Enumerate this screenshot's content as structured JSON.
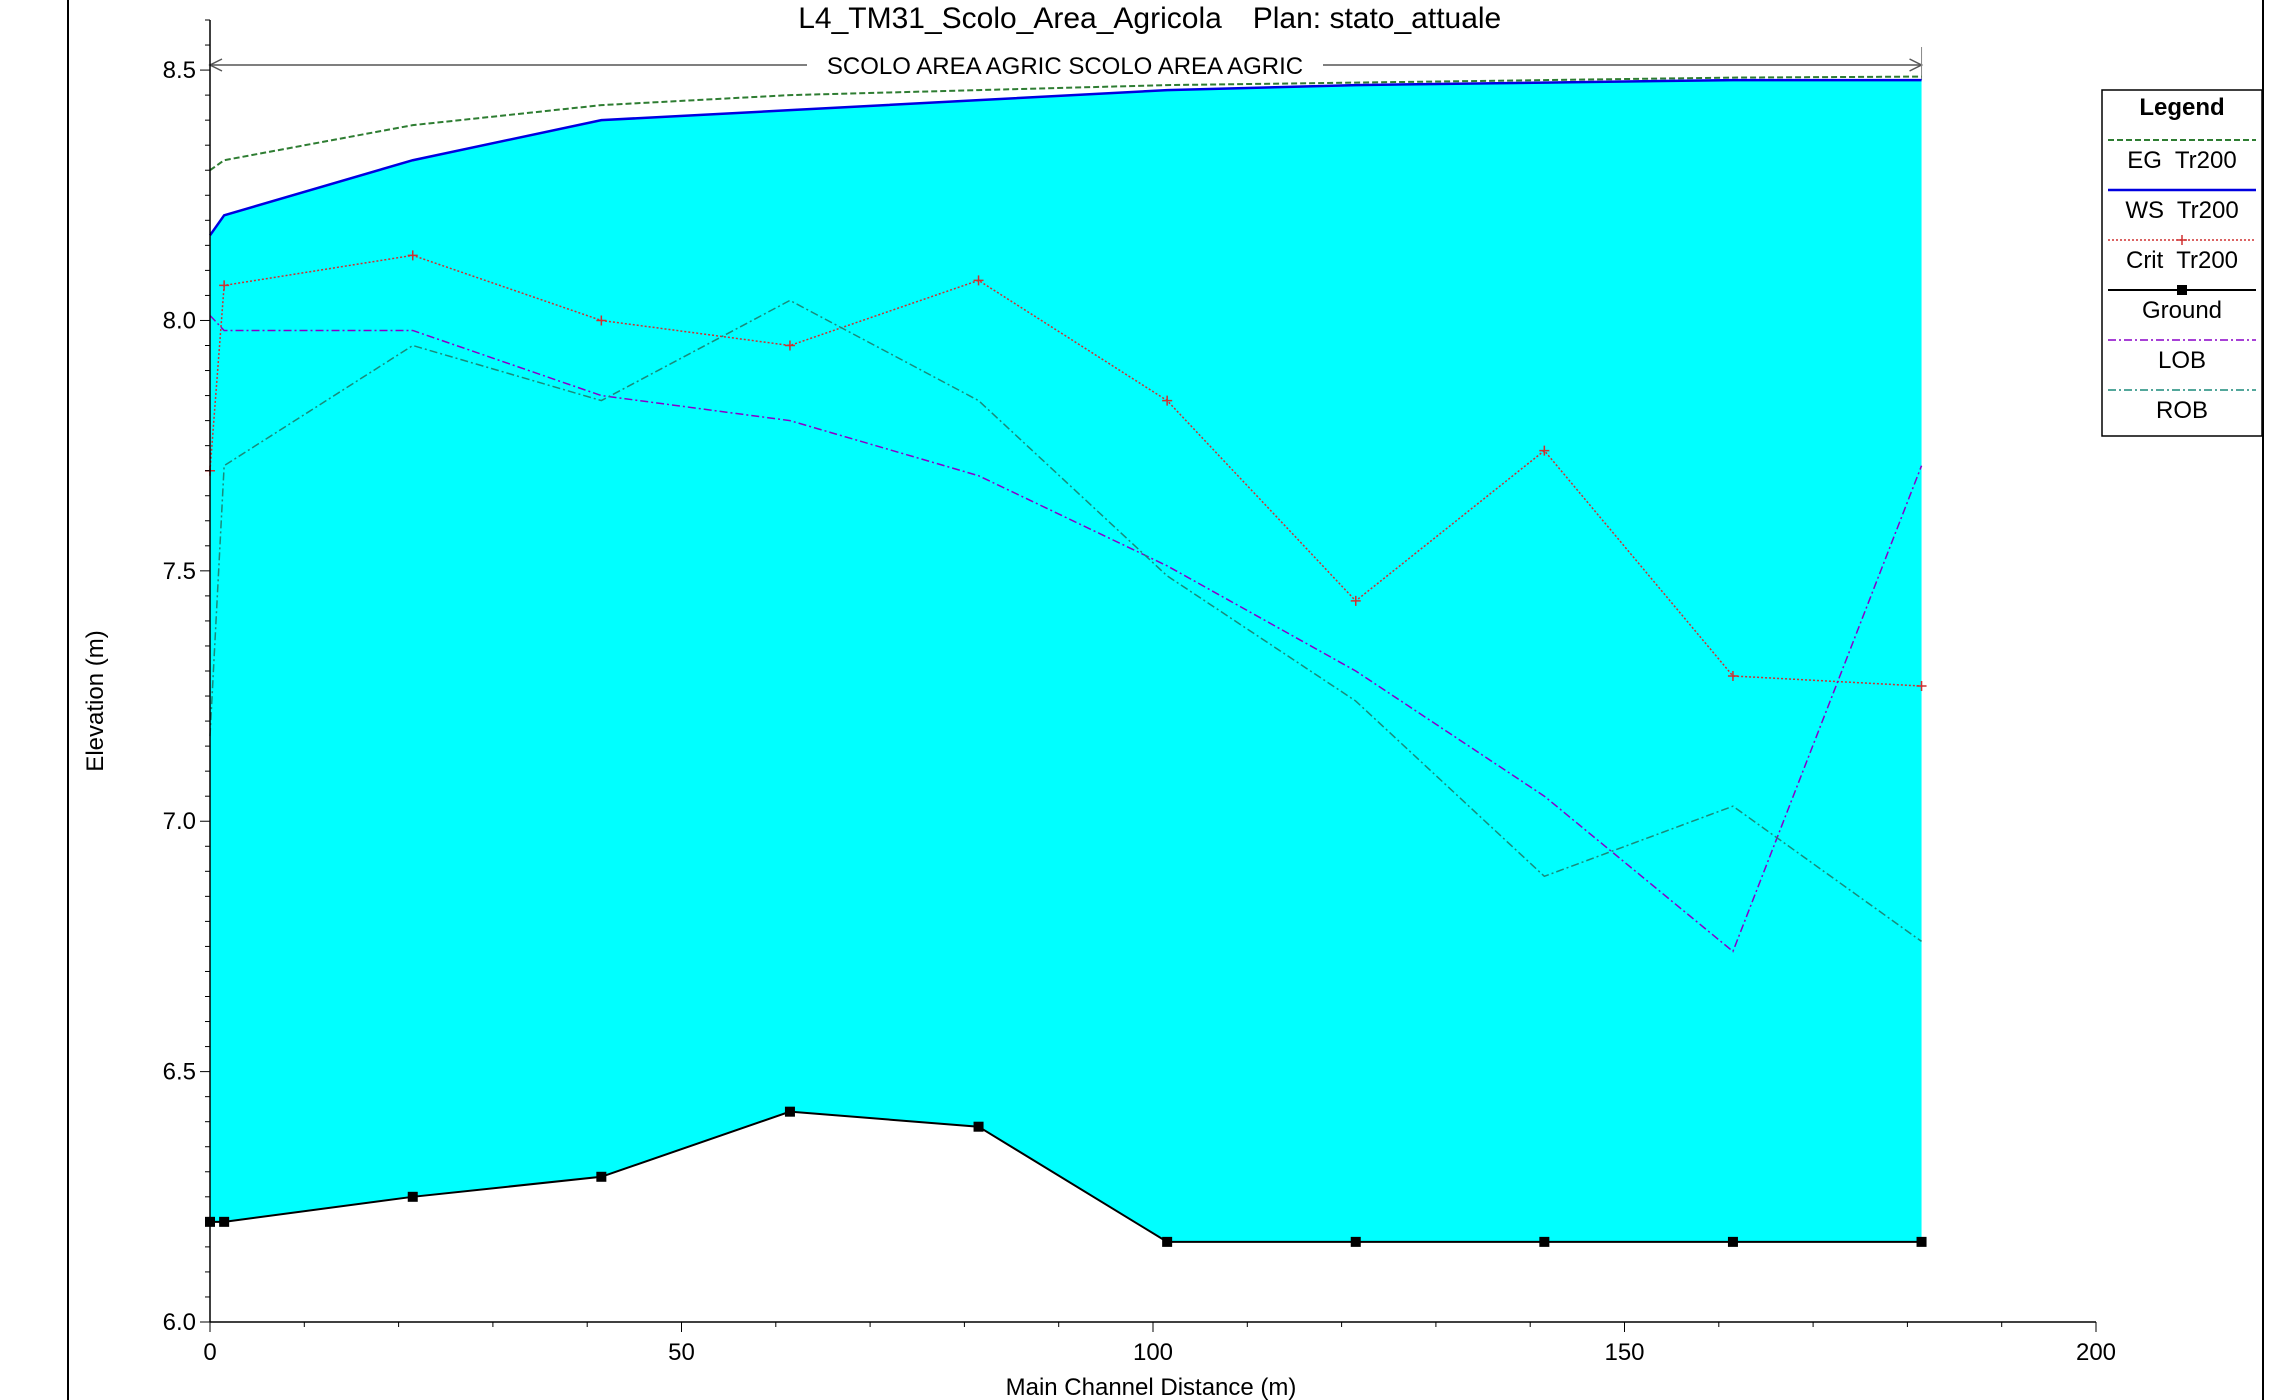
{
  "header": {
    "title": "L4_TM31_Scolo_Area_Agricola",
    "plan": "Plan: stato_attuale",
    "reach_label": "SCOLO AREA AGRIC SCOLO AREA AGRIC"
  },
  "colors": {
    "water_fill": "#00FFFF",
    "eg": "#2E7D32",
    "ws": "#0000E0",
    "crit": "#D03030",
    "ground": "#000000",
    "lob": "#8A00C8",
    "rob": "#1A8A7A"
  },
  "chart_data": {
    "type": "line",
    "xlabel": "Main Channel Distance (m)",
    "ylabel": "Elevation (m)",
    "xlim": [
      0,
      200
    ],
    "ylim": [
      6.0,
      8.6
    ],
    "x_ticks": [
      "0",
      "50",
      "100",
      "150",
      "200"
    ],
    "y_ticks": [
      "6.0",
      "6.5",
      "7.0",
      "7.5",
      "8.0",
      "8.5"
    ],
    "x_tick_values": [
      0,
      50,
      100,
      150,
      200
    ],
    "y_tick_values": [
      6.0,
      6.5,
      7.0,
      7.5,
      8.0,
      8.5
    ],
    "reach_start": 0,
    "reach_end": 181.5,
    "legend": {
      "title": "Legend",
      "position": "top-right",
      "entries": [
        "EG  Tr200",
        "WS  Tr200",
        "Crit  Tr200",
        "Ground",
        "LOB",
        "ROB"
      ]
    },
    "series": [
      {
        "name": "EG  Tr200",
        "style": "dashed",
        "x": [
          0,
          1.5,
          21.5,
          41.5,
          61.5,
          81.5,
          101.5,
          121.5,
          141.5,
          161.5,
          181.5
        ],
        "y": [
          8.3,
          8.32,
          8.39,
          8.43,
          8.45,
          8.46,
          8.47,
          8.475,
          8.48,
          8.485,
          8.487
        ]
      },
      {
        "name": "WS  Tr200",
        "style": "solid",
        "x": [
          0,
          1.5,
          21.5,
          41.5,
          61.5,
          81.5,
          101.5,
          121.5,
          141.5,
          161.5,
          181.5
        ],
        "y": [
          8.17,
          8.21,
          8.32,
          8.4,
          8.42,
          8.44,
          8.46,
          8.47,
          8.475,
          8.48,
          8.48
        ]
      },
      {
        "name": "Crit  Tr200",
        "style": "dotted",
        "x": [
          0,
          1.5,
          21.5,
          41.5,
          61.5,
          81.5,
          101.5,
          121.5,
          141.5,
          161.5,
          181.5
        ],
        "y": [
          7.7,
          8.07,
          8.13,
          8.0,
          7.95,
          8.08,
          7.84,
          7.44,
          7.74,
          7.29,
          7.27
        ]
      },
      {
        "name": "Ground",
        "style": "solid-marker",
        "x": [
          0,
          1.5,
          21.5,
          41.5,
          61.5,
          81.5,
          101.5,
          121.5,
          141.5,
          161.5,
          181.5
        ],
        "y": [
          6.2,
          6.2,
          6.25,
          6.29,
          6.42,
          6.39,
          6.16,
          6.16,
          6.16,
          6.16,
          6.16
        ]
      },
      {
        "name": "LOB",
        "style": "dashdot",
        "x": [
          0,
          1.5,
          21.5,
          41.5,
          61.5,
          81.5,
          101.5,
          121.5,
          141.5,
          161.5,
          181.5
        ],
        "y": [
          8.01,
          7.98,
          7.98,
          7.85,
          7.8,
          7.69,
          7.51,
          7.3,
          7.05,
          6.74,
          7.71
        ]
      },
      {
        "name": "ROB",
        "style": "dashdot",
        "x": [
          0,
          1.5,
          21.5,
          41.5,
          61.5,
          81.5,
          101.5,
          121.5,
          141.5,
          161.5,
          181.5
        ],
        "y": [
          7.17,
          7.71,
          7.95,
          7.84,
          8.04,
          7.84,
          7.49,
          7.24,
          6.89,
          7.03,
          6.76
        ]
      }
    ]
  }
}
